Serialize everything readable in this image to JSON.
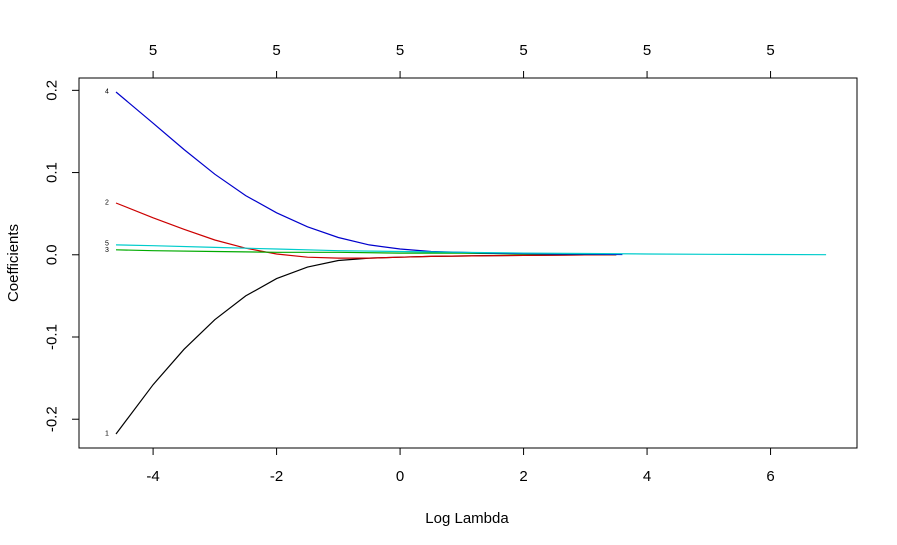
{
  "chart_data": {
    "type": "line",
    "xlabel": "Log Lambda",
    "ylabel": "Coefficients",
    "xlim": [
      -5.2,
      7.4
    ],
    "ylim": [
      -0.235,
      0.215
    ],
    "x_ticks": [
      "-4",
      "-2",
      "0",
      "2",
      "4",
      "6"
    ],
    "x_tick_values": [
      -4,
      -2,
      0,
      2,
      4,
      6
    ],
    "y_ticks": [
      "-0.2",
      "-0.1",
      "0.0",
      "0.1",
      "0.2"
    ],
    "y_tick_values": [
      -0.2,
      -0.1,
      0,
      0.1,
      0.2
    ],
    "top_ticks": [
      "5",
      "5",
      "5",
      "5",
      "5",
      "5"
    ],
    "top_tick_values": [
      -4,
      -2,
      0,
      2,
      4,
      6
    ],
    "grid": false,
    "series": [
      {
        "name": "1",
        "color": "#000000",
        "x": [
          -4.6,
          -4.0,
          -3.5,
          -3.0,
          -2.5,
          -2.0,
          -1.5,
          -1.0,
          -0.5,
          0.0,
          0.5,
          1.0,
          1.5,
          2.0,
          2.5,
          3.0,
          3.5
        ],
        "y": [
          -0.218,
          -0.158,
          -0.115,
          -0.079,
          -0.05,
          -0.029,
          -0.015,
          -0.007,
          -0.004,
          -0.003,
          -0.002,
          -0.0015,
          -0.001,
          -0.0007,
          -0.0004,
          -0.0002,
          -0.0001
        ]
      },
      {
        "name": "2",
        "color": "#cc0000",
        "x": [
          -4.6,
          -4.0,
          -3.5,
          -3.0,
          -2.5,
          -2.0,
          -1.5,
          -1.0,
          -0.5,
          0.0,
          0.5,
          1.0,
          1.5,
          2.0,
          2.5,
          3.0,
          3.5
        ],
        "y": [
          0.063,
          0.045,
          0.031,
          0.018,
          0.008,
          0.001,
          -0.003,
          -0.004,
          -0.004,
          -0.003,
          -0.002,
          -0.0015,
          -0.001,
          -0.0007,
          -0.0004,
          -0.0002,
          -0.0001
        ]
      },
      {
        "name": "3",
        "color": "#00aa00",
        "x": [
          -4.6,
          -4.0,
          -3.0,
          -2.0,
          -1.0,
          0.0,
          1.0,
          2.0,
          3.0,
          3.5
        ],
        "y": [
          0.006,
          0.005,
          0.004,
          0.003,
          0.003,
          0.002,
          0.002,
          0.001,
          0.0005,
          0.0003
        ]
      },
      {
        "name": "4",
        "color": "#0000cc",
        "x": [
          -4.6,
          -4.0,
          -3.5,
          -3.0,
          -2.5,
          -2.0,
          -1.5,
          -1.0,
          -0.5,
          0.0,
          0.5,
          1.0,
          1.5,
          2.0,
          2.5,
          3.0,
          3.6
        ],
        "y": [
          0.198,
          0.16,
          0.128,
          0.098,
          0.072,
          0.051,
          0.034,
          0.021,
          0.012,
          0.007,
          0.004,
          0.003,
          0.002,
          0.0015,
          0.001,
          0.0007,
          0.0003
        ]
      },
      {
        "name": "5",
        "color": "#00cccc",
        "x": [
          -4.6,
          -4.0,
          -3.0,
          -2.0,
          -1.0,
          0.0,
          1.0,
          2.0,
          3.0,
          4.0,
          5.0,
          6.0,
          6.9
        ],
        "y": [
          0.012,
          0.011,
          0.009,
          0.007,
          0.005,
          0.004,
          0.003,
          0.002,
          0.0015,
          0.001,
          0.0006,
          0.0003,
          0.0001
        ]
      }
    ],
    "line_labels": [
      {
        "text": "4",
        "x": -4.6,
        "y": 0.198
      },
      {
        "text": "2",
        "x": -4.6,
        "y": 0.063
      },
      {
        "text": "5",
        "x": -4.6,
        "y": 0.013
      },
      {
        "text": "3",
        "x": -4.6,
        "y": 0.005
      },
      {
        "text": "1",
        "x": -4.6,
        "y": -0.218
      }
    ]
  }
}
